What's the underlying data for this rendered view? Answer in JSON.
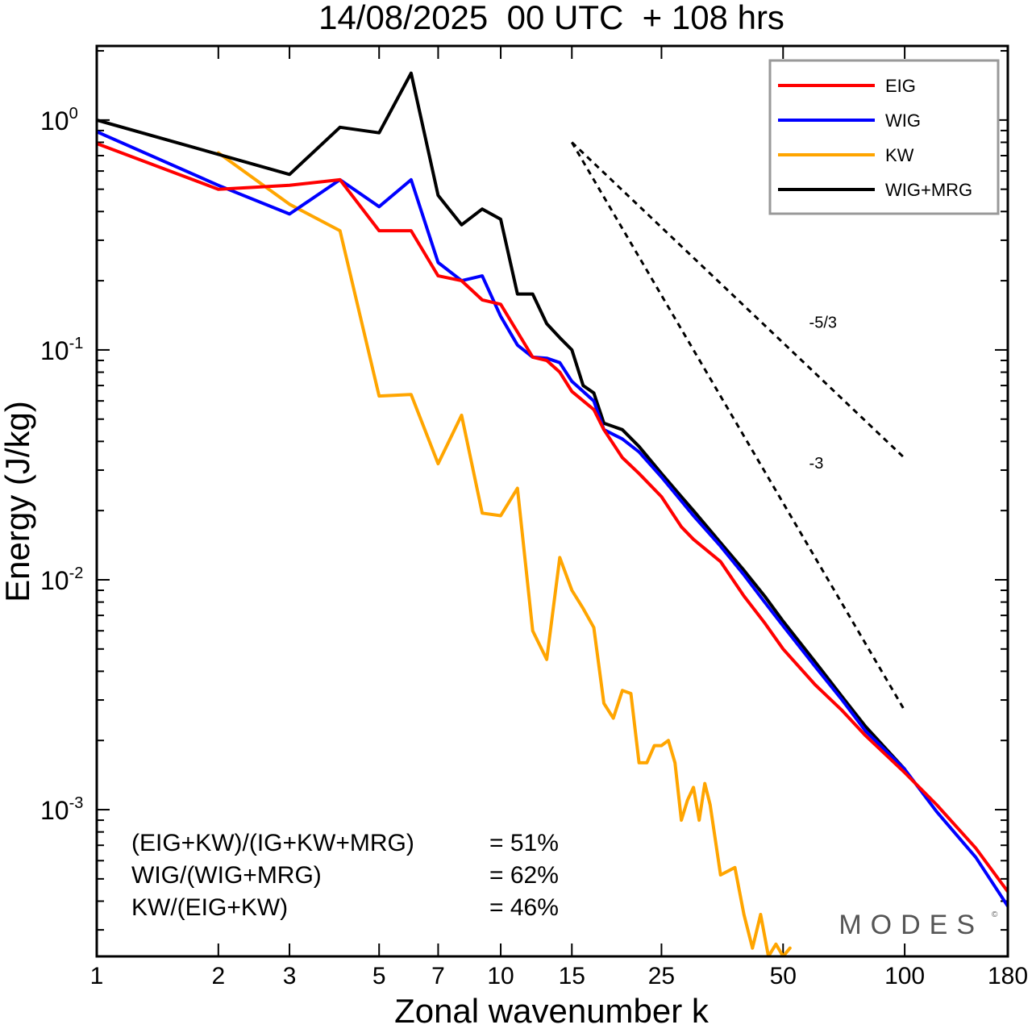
{
  "chart_data": {
    "type": "line",
    "title": "14/08/2025  00 UTC  + 108 hrs",
    "xlabel": "Zonal wavenumber k",
    "ylabel": "Energy (J/kg)",
    "xscale": "log",
    "yscale": "log",
    "xlim": [
      1,
      180
    ],
    "ylim": [
      0.00023,
      2.1
    ],
    "x_ticks": [
      1,
      2,
      3,
      5,
      7,
      10,
      15,
      25,
      50,
      100,
      180
    ],
    "x_tick_labels": [
      "1",
      "2",
      "3",
      "5",
      "7",
      "10",
      "15",
      "25",
      "50",
      "100",
      "180"
    ],
    "y_ticks": [
      {
        "value": 1,
        "base": "10",
        "exp": "0"
      },
      {
        "value": 0.1,
        "base": "10",
        "exp": "-1"
      },
      {
        "value": 0.01,
        "base": "10",
        "exp": "-2"
      },
      {
        "value": 0.001,
        "base": "10",
        "exp": "-3"
      }
    ],
    "legend": {
      "position": "top-right"
    },
    "series": [
      {
        "name": "EIG",
        "color": "#ff0000",
        "x": [
          1,
          2,
          3,
          4,
          5,
          6,
          7,
          8,
          9,
          10,
          12,
          13,
          14,
          15,
          17,
          18,
          20,
          22,
          25,
          28,
          30,
          35,
          40,
          45,
          50,
          60,
          70,
          80,
          100,
          120,
          150,
          180
        ],
        "y": [
          0.79,
          0.5,
          0.52,
          0.55,
          0.33,
          0.33,
          0.21,
          0.2,
          0.165,
          0.158,
          0.093,
          0.09,
          0.08,
          0.066,
          0.055,
          0.045,
          0.034,
          0.029,
          0.023,
          0.017,
          0.015,
          0.012,
          0.0085,
          0.0065,
          0.005,
          0.0035,
          0.0027,
          0.0021,
          0.00145,
          0.00105,
          0.00068,
          0.00044
        ]
      },
      {
        "name": "WIG",
        "color": "#0000ff",
        "x": [
          1,
          2,
          3,
          4,
          5,
          6,
          7,
          8,
          9,
          10,
          11,
          12,
          13,
          14,
          15,
          17,
          18,
          20,
          22,
          25,
          28,
          30,
          35,
          40,
          45,
          50,
          60,
          70,
          80,
          100,
          120,
          150,
          180
        ],
        "y": [
          0.89,
          0.52,
          0.39,
          0.55,
          0.42,
          0.55,
          0.24,
          0.2,
          0.21,
          0.14,
          0.105,
          0.093,
          0.092,
          0.088,
          0.073,
          0.06,
          0.045,
          0.041,
          0.036,
          0.028,
          0.022,
          0.019,
          0.014,
          0.0105,
          0.008,
          0.0063,
          0.0042,
          0.003,
          0.0022,
          0.0015,
          0.00098,
          0.00062,
          0.00038
        ]
      },
      {
        "name": "KW",
        "color": "#ffa500",
        "x": [
          2,
          3,
          4,
          5,
          6,
          7,
          8,
          9,
          10,
          11,
          12,
          13,
          14,
          15,
          16,
          17,
          18,
          19,
          20,
          21,
          22,
          23,
          24,
          25,
          26,
          27,
          28,
          29,
          30,
          31,
          32,
          33,
          35,
          38,
          40,
          42,
          44,
          46,
          48,
          50,
          52
        ],
        "y": [
          0.72,
          0.43,
          0.33,
          0.063,
          0.064,
          0.032,
          0.052,
          0.0195,
          0.019,
          0.025,
          0.006,
          0.0045,
          0.0125,
          0.009,
          0.0075,
          0.0062,
          0.0029,
          0.0025,
          0.0033,
          0.0032,
          0.0016,
          0.0016,
          0.0019,
          0.0019,
          0.002,
          0.0016,
          0.0009,
          0.0011,
          0.00125,
          0.0009,
          0.0013,
          0.00105,
          0.00052,
          0.00056,
          0.00035,
          0.00025,
          0.00035,
          0.00023,
          0.00026,
          0.00023,
          0.00025
        ]
      },
      {
        "name": "WIG+MRG",
        "color": "#000000",
        "x": [
          1,
          3,
          4,
          5,
          6,
          7,
          8,
          9,
          10,
          11,
          12,
          13,
          14,
          15,
          16,
          17,
          18,
          20,
          22,
          25,
          28,
          30,
          35,
          40,
          45,
          50,
          60,
          70,
          80,
          100
        ],
        "y": [
          1.0,
          0.58,
          0.93,
          0.88,
          1.6,
          0.47,
          0.35,
          0.41,
          0.37,
          0.175,
          0.175,
          0.13,
          0.113,
          0.1,
          0.07,
          0.065,
          0.048,
          0.045,
          0.038,
          0.029,
          0.023,
          0.02,
          0.0145,
          0.011,
          0.0085,
          0.0066,
          0.0044,
          0.0031,
          0.0023,
          0.0015
        ]
      }
    ],
    "reference_slopes": [
      {
        "label": "-5/3",
        "slope": -1.6667,
        "x": [
          15,
          100
        ],
        "y": [
          0.8,
          0.0338
        ]
      },
      {
        "label": "-3",
        "slope": -3,
        "x": [
          15,
          100
        ],
        "y": [
          0.8,
          0.0027
        ]
      }
    ],
    "annotations": [
      {
        "name": "(EIG+KW)/(IG+KW+MRG)",
        "value": "= 51%"
      },
      {
        "name": "WIG/(WIG+MRG)",
        "value": "= 62%"
      },
      {
        "name": "KW/(EIG+KW)",
        "value": "= 46%"
      }
    ],
    "watermark": "MODES"
  }
}
